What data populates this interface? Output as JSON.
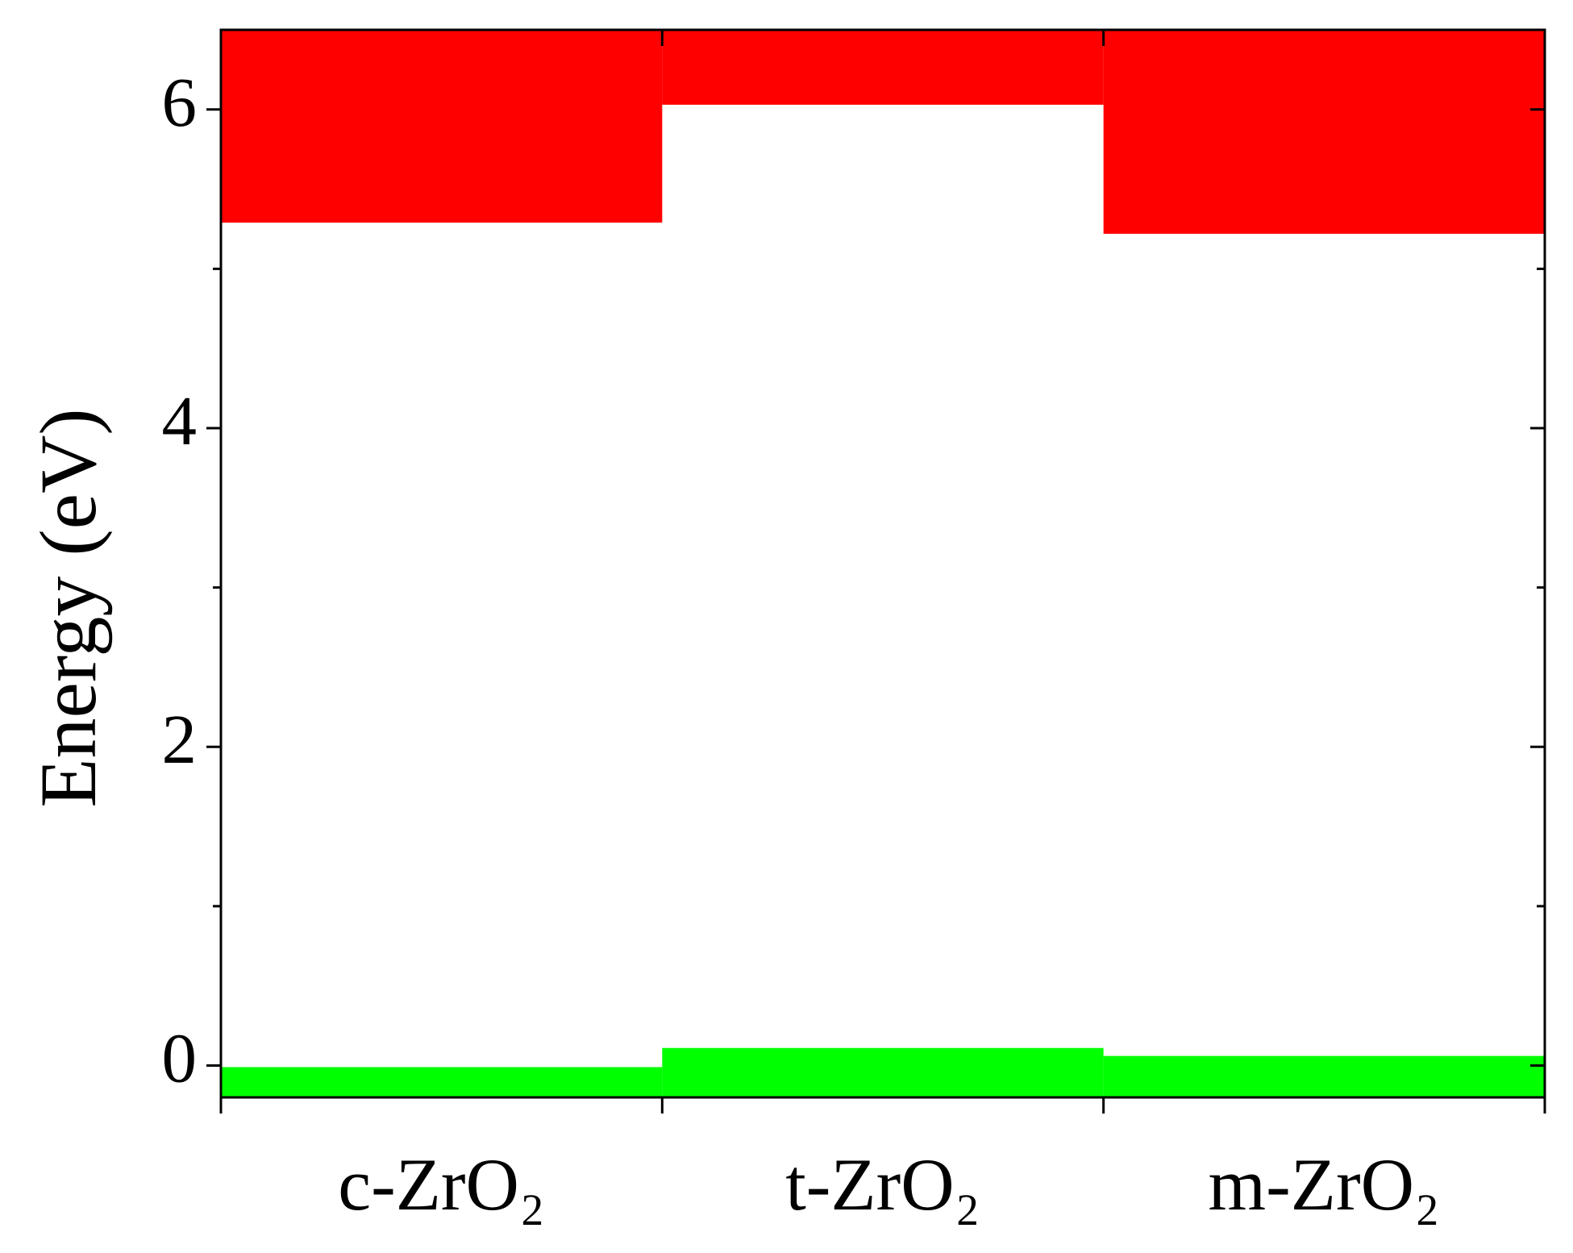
{
  "chart_data": {
    "type": "band",
    "ylabel": "Energy (eV)",
    "categories": [
      "c-ZrO₂",
      "t-ZrO₂",
      "m-ZrO₂"
    ],
    "series": [
      {
        "color": "#ff0000",
        "values": [
          5.29,
          6.03,
          5.22
        ],
        "extends": "up"
      },
      {
        "color": "#00ff00",
        "values": [
          -0.01,
          0.11,
          0.06
        ],
        "extends": "down"
      }
    ],
    "ylim": [
      -0.2,
      6.5
    ],
    "yticks": [
      0,
      2,
      4,
      6
    ],
    "minor_yticks": [
      1,
      3,
      5
    ]
  }
}
